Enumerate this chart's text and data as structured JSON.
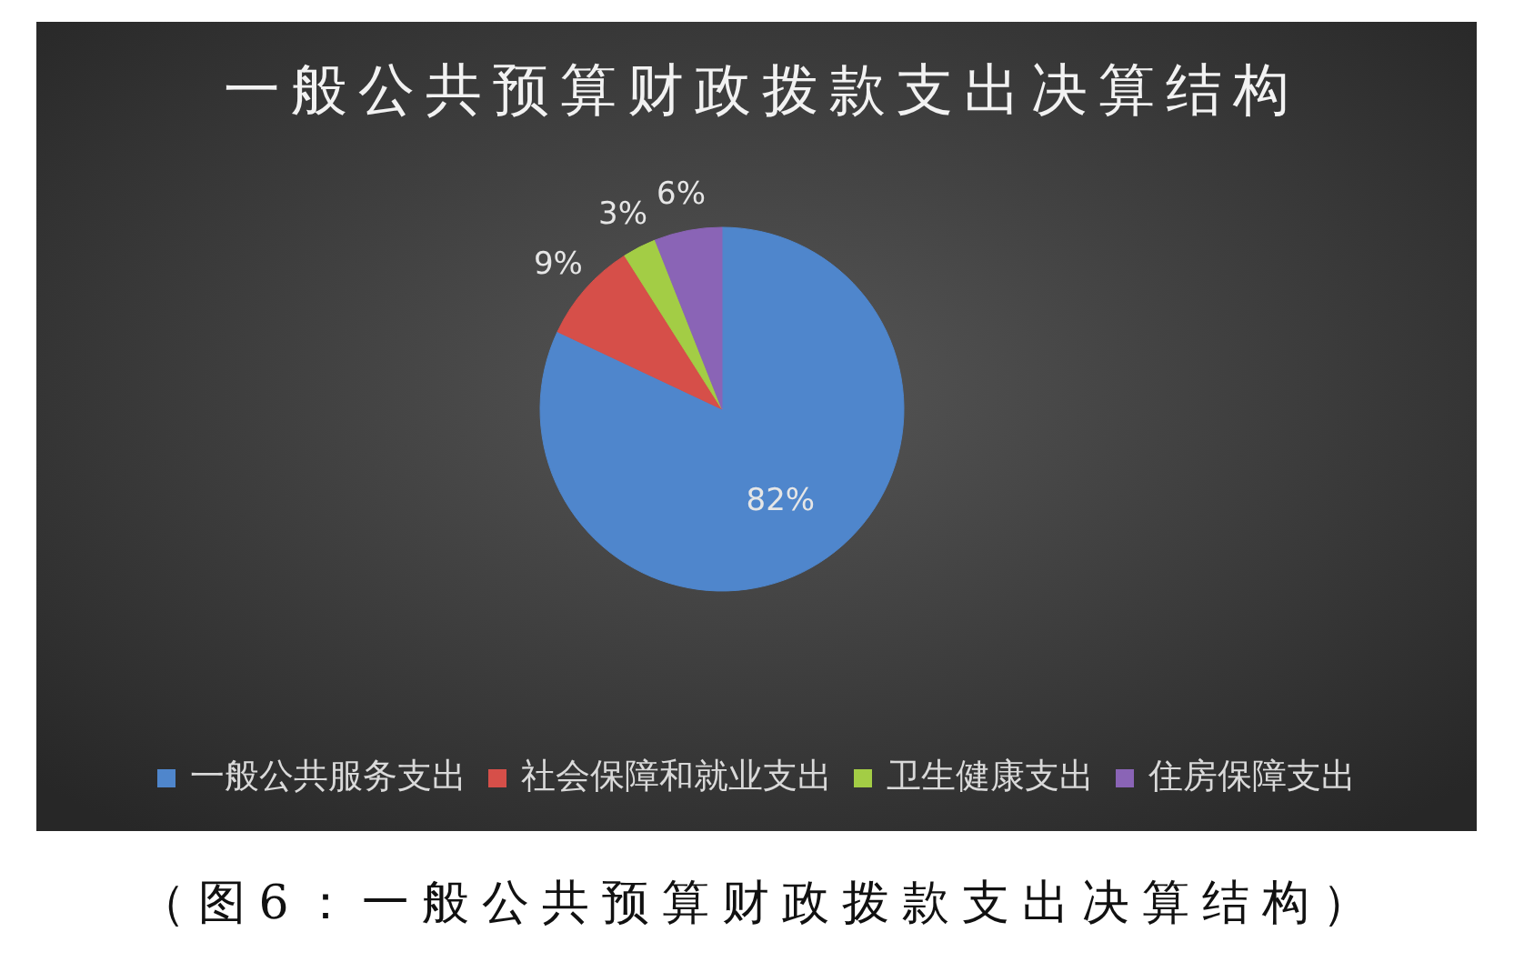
{
  "chart_data": {
    "type": "pie",
    "title": "一般公共预算财政拨款支出决算结构",
    "categories": [
      "一般公共服务支出",
      "社会保障和就业支出",
      "卫生健康支出",
      "住房保障支出"
    ],
    "values": [
      82,
      9,
      3,
      6
    ],
    "colors": [
      "#4f86cc",
      "#d64f49",
      "#a3cd45",
      "#8a64b6"
    ],
    "value_labels": [
      "82%",
      "9%",
      "3%",
      "6%"
    ],
    "legend": "bottom",
    "annotations": [
      "（图6：一般公共预算财政拨款支出决算结构）"
    ]
  }
}
